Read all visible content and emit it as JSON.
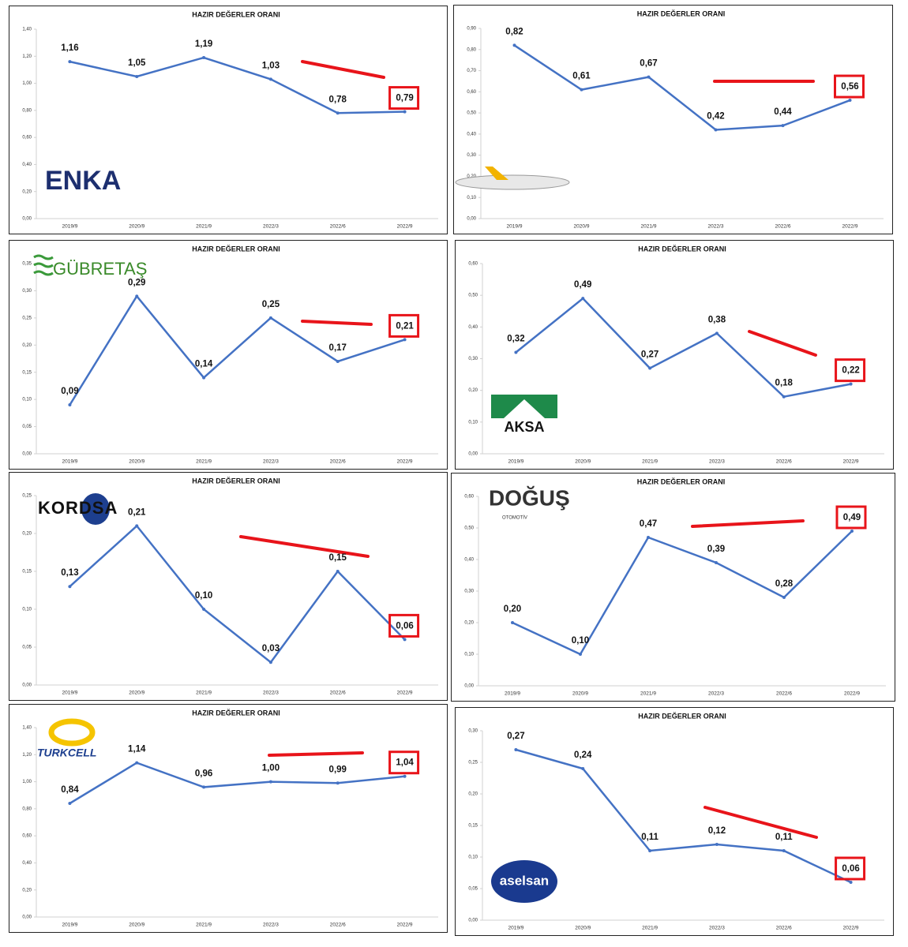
{
  "chart_data": [
    {
      "type": "line",
      "title": "HAZIR DEĞERLER ORANI",
      "logo": "ENKA",
      "categories": [
        "2019/9",
        "2020/9",
        "2021/9",
        "2022/3",
        "2022/6",
        "2022/9"
      ],
      "series": [
        {
          "color": "#4472c4",
          "values": [
            1.16,
            1.05,
            1.19,
            1.03,
            0.78,
            0.79
          ],
          "value_labels": [
            "1,16",
            "1,05",
            "1,19",
            "1,03",
            "0,78",
            "0,79"
          ]
        }
      ],
      "ylim": [
        0,
        1.4
      ],
      "yticks": [
        {
          "value": 0,
          "label": "0,00"
        },
        {
          "value": 0.2,
          "label": "0,20"
        },
        {
          "value": 0.4,
          "label": "0,40"
        },
        {
          "value": 0.6,
          "label": "0,60"
        },
        {
          "value": 0.8,
          "label": "0,80"
        },
        {
          "value": 1.0,
          "label": "1,00"
        },
        {
          "value": 1.2,
          "label": "1,20"
        },
        {
          "value": 1.4,
          "label": "1,40"
        }
      ]
    },
    {
      "type": "line",
      "title": "HAZIR DEĞERLER ORANI",
      "categories": [
        "2019/9",
        "2020/9",
        "2021/9",
        "2022/3",
        "2022/6",
        "2022/9"
      ],
      "series": [
        {
          "color": "#4472c4",
          "values": [
            0.82,
            0.61,
            0.67,
            0.42,
            0.44,
            0.56
          ],
          "value_labels": [
            "0,82",
            "0,61",
            "0,67",
            "0,42",
            "0,44",
            "0,56"
          ]
        }
      ],
      "ylim": [
        0,
        0.9
      ],
      "yticks": [
        {
          "value": 0,
          "label": "0,00"
        },
        {
          "value": 0.1,
          "label": "0,10"
        },
        {
          "value": 0.2,
          "label": "0,20"
        },
        {
          "value": 0.3,
          "label": "0,30"
        },
        {
          "value": 0.4,
          "label": "0,40"
        },
        {
          "value": 0.5,
          "label": "0,50"
        },
        {
          "value": 0.6,
          "label": "0,60"
        },
        {
          "value": 0.7,
          "label": "0,70"
        },
        {
          "value": 0.8,
          "label": "0,80"
        },
        {
          "value": 0.9,
          "label": "0,90"
        }
      ]
    },
    {
      "type": "line",
      "title": "HAZIR DEĞERLER ORANI",
      "logo": "GÜBRETAŞ",
      "categories": [
        "2019/9",
        "2020/9",
        "2021/9",
        "2022/3",
        "2022/6",
        "2022/9"
      ],
      "series": [
        {
          "color": "#4472c4",
          "values": [
            0.09,
            0.29,
            0.14,
            0.25,
            0.17,
            0.21
          ],
          "value_labels": [
            "0,09",
            "0,29",
            "0,14",
            "0,25",
            "0,17",
            "0,21"
          ]
        }
      ],
      "ylim": [
        0,
        0.35
      ],
      "yticks": [
        {
          "value": 0,
          "label": "0,00"
        },
        {
          "value": 0.05,
          "label": "0,05"
        },
        {
          "value": 0.1,
          "label": "0,10"
        },
        {
          "value": 0.15,
          "label": "0,15"
        },
        {
          "value": 0.2,
          "label": "0,20"
        },
        {
          "value": 0.25,
          "label": "0,25"
        },
        {
          "value": 0.3,
          "label": "0,30"
        },
        {
          "value": 0.35,
          "label": "0,35"
        }
      ]
    },
    {
      "type": "line",
      "title": "HAZIR DEĞERLER ORANI",
      "logo": "AKSA",
      "categories": [
        "2019/9",
        "2020/9",
        "2021/9",
        "2022/3",
        "2022/6",
        "2022/9"
      ],
      "series": [
        {
          "color": "#4472c4",
          "values": [
            0.32,
            0.49,
            0.27,
            0.38,
            0.18,
            0.22
          ],
          "value_labels": [
            "0,32",
            "0,49",
            "0,27",
            "0,38",
            "0,18",
            "0,22"
          ]
        }
      ],
      "ylim": [
        0,
        0.6
      ],
      "yticks": [
        {
          "value": 0,
          "label": "0,00"
        },
        {
          "value": 0.1,
          "label": "0,10"
        },
        {
          "value": 0.2,
          "label": "0,20"
        },
        {
          "value": 0.3,
          "label": "0,30"
        },
        {
          "value": 0.4,
          "label": "0,40"
        },
        {
          "value": 0.5,
          "label": "0,50"
        },
        {
          "value": 0.6,
          "label": "0,60"
        }
      ]
    },
    {
      "type": "line",
      "title": "HAZIR DEĞERLER ORANI",
      "logo": "KORDSA",
      "categories": [
        "2019/9",
        "2020/9",
        "2021/9",
        "2022/3",
        "2022/6",
        "2022/9"
      ],
      "series": [
        {
          "color": "#4472c4",
          "values": [
            0.13,
            0.21,
            0.1,
            0.03,
            0.15,
            0.06
          ],
          "value_labels": [
            "0,13",
            "0,21",
            "0,10",
            "0,03",
            "0,15",
            "0,06"
          ]
        }
      ],
      "ylim": [
        0,
        0.25
      ],
      "yticks": [
        {
          "value": 0,
          "label": "0,00"
        },
        {
          "value": 0.05,
          "label": "0,05"
        },
        {
          "value": 0.1,
          "label": "0,10"
        },
        {
          "value": 0.15,
          "label": "0,15"
        },
        {
          "value": 0.2,
          "label": "0,20"
        },
        {
          "value": 0.25,
          "label": "0,25"
        }
      ]
    },
    {
      "type": "line",
      "title": "HAZIR DEĞERLER ORANI",
      "logo": "DOĞUŞ",
      "logo_sub": "OTOMOTİV",
      "categories": [
        "2019/9",
        "2020/9",
        "2021/9",
        "2022/3",
        "2022/6",
        "2022/9"
      ],
      "series": [
        {
          "color": "#4472c4",
          "values": [
            0.2,
            0.1,
            0.47,
            0.39,
            0.28,
            0.49
          ],
          "value_labels": [
            "0,20",
            "0,10",
            "0,47",
            "0,39",
            "0,28",
            "0,49"
          ]
        }
      ],
      "ylim": [
        0,
        0.6
      ],
      "yticks": [
        {
          "value": 0,
          "label": "0,00"
        },
        {
          "value": 0.1,
          "label": "0,10"
        },
        {
          "value": 0.2,
          "label": "0,20"
        },
        {
          "value": 0.3,
          "label": "0,30"
        },
        {
          "value": 0.4,
          "label": "0,40"
        },
        {
          "value": 0.5,
          "label": "0,50"
        },
        {
          "value": 0.6,
          "label": "0,60"
        }
      ]
    },
    {
      "type": "line",
      "title": "HAZIR DEĞERLER ORANI",
      "logo": "TURKCELL",
      "categories": [
        "2019/9",
        "2020/9",
        "2021/9",
        "2022/3",
        "2022/6",
        "2022/9"
      ],
      "series": [
        {
          "color": "#4472c4",
          "values": [
            0.84,
            1.14,
            0.96,
            1.0,
            0.99,
            1.04
          ],
          "value_labels": [
            "0,84",
            "1,14",
            "0,96",
            "1,00",
            "0,99",
            "1,04"
          ]
        }
      ],
      "ylim": [
        0,
        1.4
      ],
      "yticks": [
        {
          "value": 0,
          "label": "0,00"
        },
        {
          "value": 0.2,
          "label": "0,20"
        },
        {
          "value": 0.4,
          "label": "0,40"
        },
        {
          "value": 0.6,
          "label": "0,60"
        },
        {
          "value": 0.8,
          "label": "0,80"
        },
        {
          "value": 1.0,
          "label": "1,00"
        },
        {
          "value": 1.2,
          "label": "1,20"
        },
        {
          "value": 1.4,
          "label": "1,40"
        }
      ]
    },
    {
      "type": "line",
      "title": "HAZIR DEĞERLER ORANI",
      "logo": "aselsan",
      "categories": [
        "2019/9",
        "2020/9",
        "2021/9",
        "2022/3",
        "2022/6",
        "2022/9"
      ],
      "series": [
        {
          "color": "#4472c4",
          "values": [
            0.27,
            0.24,
            0.11,
            0.12,
            0.11,
            0.06
          ],
          "value_labels": [
            "0,27",
            "0,24",
            "0,11",
            "0,12",
            "0,11",
            "0,06"
          ]
        }
      ],
      "ylim": [
        0,
        0.3
      ],
      "yticks": [
        {
          "value": 0,
          "label": "0,00"
        },
        {
          "value": 0.05,
          "label": "0,05"
        },
        {
          "value": 0.1,
          "label": "0,10"
        },
        {
          "value": 0.15,
          "label": "0,15"
        },
        {
          "value": 0.2,
          "label": "0,20"
        },
        {
          "value": 0.25,
          "label": "0,25"
        },
        {
          "value": 0.3,
          "label": "0,30"
        }
      ]
    }
  ]
}
